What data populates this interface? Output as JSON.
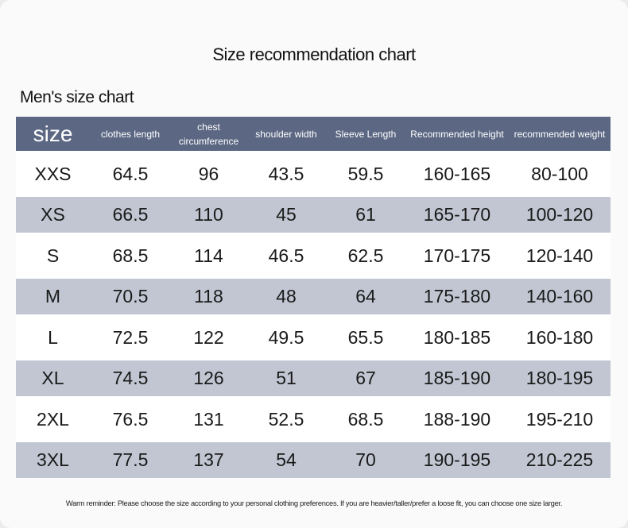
{
  "title": "Size recommendation chart",
  "subtitle": "Men's size chart",
  "table": {
    "header": [
      "size",
      "clothes length",
      "chest circumference",
      "shoulder width",
      "Sleeve Length",
      "Recommended height",
      "recommended weight"
    ],
    "rows": [
      [
        "XXS",
        "64.5",
        "96",
        "43.5",
        "59.5",
        "160-165",
        "80-100"
      ],
      [
        "XS",
        "66.5",
        "110",
        "45",
        "61",
        "165-170",
        "100-120"
      ],
      [
        "S",
        "68.5",
        "114",
        "46.5",
        "62.5",
        "170-175",
        "120-140"
      ],
      [
        "M",
        "70.5",
        "118",
        "48",
        "64",
        "175-180",
        "140-160"
      ],
      [
        "L",
        "72.5",
        "122",
        "49.5",
        "65.5",
        "180-185",
        "160-180"
      ],
      [
        "XL",
        "74.5",
        "126",
        "51",
        "67",
        "185-190",
        "180-195"
      ],
      [
        "2XL",
        "76.5",
        "131",
        "52.5",
        "68.5",
        "188-190",
        "195-210"
      ],
      [
        "3XL",
        "77.5",
        "137",
        "54",
        "70",
        "190-195",
        "210-225"
      ]
    ]
  },
  "footnote": "Warm reminder: Please choose the size according to your personal clothing preferences. If you are heavier/taller/prefer a loose fit, you can choose one size larger."
}
